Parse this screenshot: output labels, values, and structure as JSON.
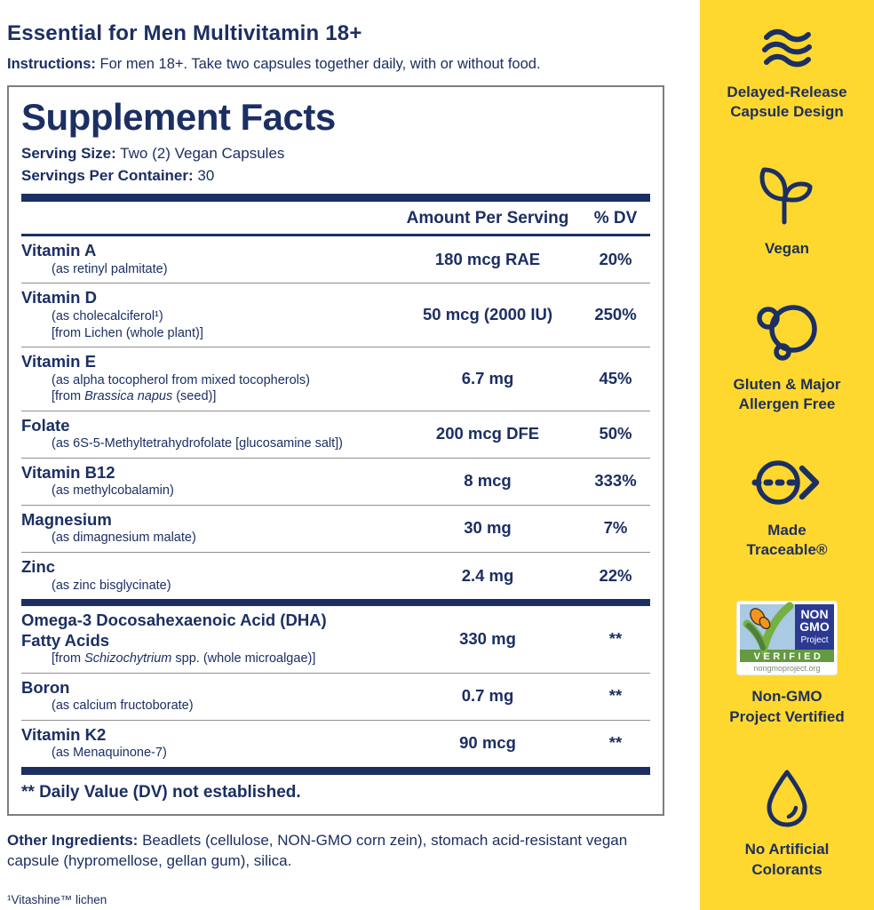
{
  "page": {
    "title": "Essential for Men Multivitamin 18+",
    "instructions_label": "Instructions:",
    "instructions_text": " For men 18+. Take two capsules together daily, with or without food."
  },
  "facts": {
    "title": "Supplement Facts",
    "serving_size_label": "Serving Size:",
    "serving_size_value": " Two (2) Vegan Capsules",
    "servings_label": "Servings Per Container:",
    "servings_value": " 30",
    "columns": {
      "amount": "Amount Per Serving",
      "dv": "% DV"
    },
    "rows": [
      {
        "name": "Vitamin A",
        "subs": [
          [
            {
              "t": "(as retinyl palmitate)"
            }
          ]
        ],
        "amount": "180 mcg RAE",
        "dv": "20%"
      },
      {
        "name": "Vitamin D",
        "subs": [
          [
            {
              "t": "(as cholecalciferol¹)"
            }
          ],
          [
            {
              "t": "[from Lichen (whole plant)]"
            }
          ]
        ],
        "amount": "50 mcg (2000 IU)",
        "dv": "250%"
      },
      {
        "name": "Vitamin E",
        "subs": [
          [
            {
              "t": "(as alpha tocopherol from mixed tocopherols)"
            }
          ],
          [
            {
              "t": "[from "
            },
            {
              "t": "Brassica napus",
              "i": true
            },
            {
              "t": " (seed)]"
            }
          ]
        ],
        "amount": "6.7 mg",
        "dv": "45%"
      },
      {
        "name": "Folate",
        "subs": [
          [
            {
              "t": "(as 6S-5-Methyltetrahydrofolate [glucosamine salt])"
            }
          ]
        ],
        "amount": "200 mcg DFE",
        "dv": "50%"
      },
      {
        "name": "Vitamin B12",
        "subs": [
          [
            {
              "t": "(as methylcobalamin)"
            }
          ]
        ],
        "amount": "8 mcg",
        "dv": "333%"
      },
      {
        "name": "Magnesium",
        "subs": [
          [
            {
              "t": "(as dimagnesium malate)"
            }
          ]
        ],
        "amount": "30 mg",
        "dv": "7%"
      },
      {
        "name": "Zinc",
        "subs": [
          [
            {
              "t": "(as zinc bisglycinate)"
            }
          ]
        ],
        "amount": "2.4 mg",
        "dv": "22%"
      },
      {
        "name": "Omega-3 Docosahexaenoic Acid (DHA)\nFatty Acids",
        "thick_before": true,
        "subs": [
          [
            {
              "t": "[from "
            },
            {
              "t": "Schizochytrium",
              "i": true
            },
            {
              "t": " spp. (whole microalgae)]"
            }
          ]
        ],
        "amount": "330 mg",
        "dv": "**"
      },
      {
        "name": "Boron",
        "subs": [
          [
            {
              "t": "(as calcium fructoborate)"
            }
          ]
        ],
        "amount": "0.7 mg",
        "dv": "**"
      },
      {
        "name": "Vitamin K2",
        "subs": [
          [
            {
              "t": "(as Menaquinone-7)"
            }
          ]
        ],
        "amount": "90 mcg",
        "dv": "**"
      }
    ],
    "dv_note": "** Daily Value (DV) not established."
  },
  "other_ingredients": {
    "label": "Other Ingredients:",
    "text": " Beadlets (cellulose, NON-GMO corn zein), stomach acid-resistant vegan capsule (hypromellose, gellan gum), silica."
  },
  "footnote": "¹Vitashine™ lichen",
  "sidebar": {
    "features": [
      {
        "icon": "waves-icon",
        "label": "Delayed-Release\nCapsule Design"
      },
      {
        "icon": "seedling-icon",
        "label": "Vegan"
      },
      {
        "icon": "allergen-free-icon",
        "label": "Gluten & Major\nAllergen Free"
      },
      {
        "icon": "traceable-icon",
        "label": "Made\nTraceable®"
      },
      {
        "icon": "non-gmo-badge",
        "label": "Non-GMO\nProject Vertified"
      },
      {
        "icon": "droplet-icon",
        "label": "No Artificial\nColorants"
      }
    ],
    "badge": {
      "line1": "NON",
      "line2": "GMO",
      "line3": "Project",
      "verified": "VERIFIED",
      "url": "nongmoproject.org"
    }
  },
  "colors": {
    "navy": "#1c2f63",
    "yellow": "#FFD82F",
    "divider_gray": "#8f8f8f",
    "badge_blue": "#2b3990",
    "badge_green": "#659a41",
    "badge_sky": "#aac9e3",
    "butterfly_orange": "#f7941d"
  }
}
